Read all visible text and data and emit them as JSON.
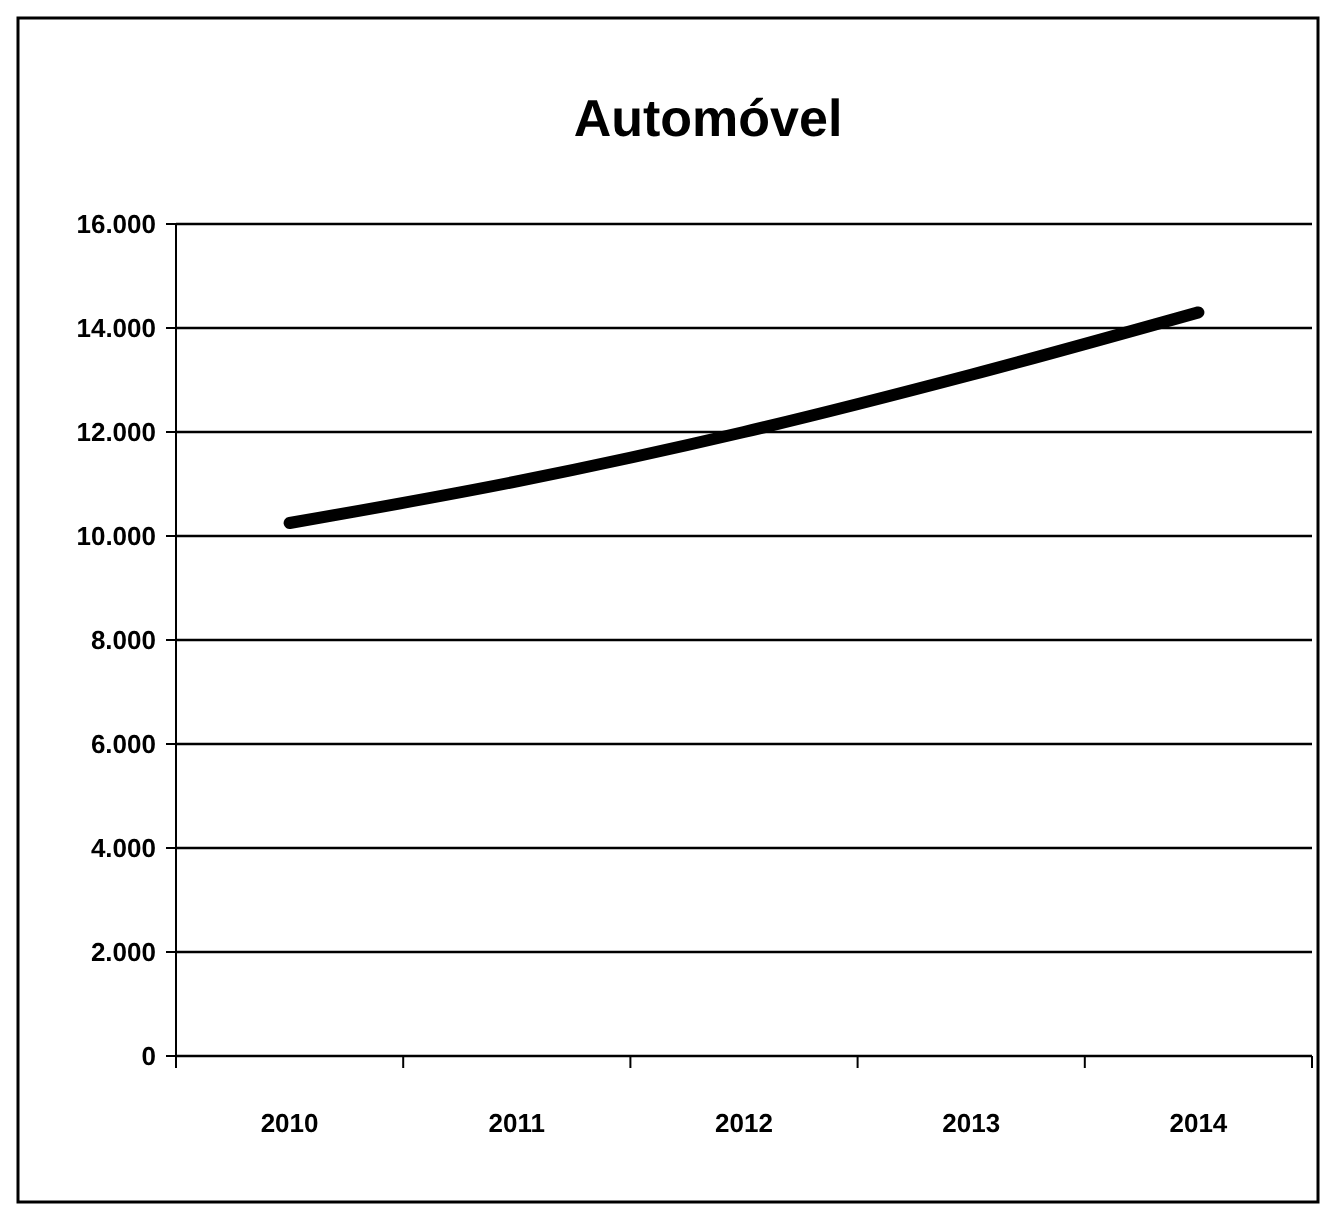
{
  "chart_data": {
    "type": "line",
    "title": "Automóvel",
    "categories": [
      "2010",
      "2011",
      "2012",
      "2013",
      "2014"
    ],
    "series": [
      {
        "color": "#000000",
        "values": [
          10250,
          11050,
          12000,
          13100,
          14300
        ]
      }
    ],
    "ylim": [
      0,
      16000
    ],
    "yticks": [
      {
        "value": 0,
        "label": "0"
      },
      {
        "value": 2000,
        "label": "2.000"
      },
      {
        "value": 4000,
        "label": "4.000"
      },
      {
        "value": 6000,
        "label": "6.000"
      },
      {
        "value": 8000,
        "label": "8.000"
      },
      {
        "value": 10000,
        "label": "10.000"
      },
      {
        "value": 12000,
        "label": "12.000"
      },
      {
        "value": 14000,
        "label": "14.000"
      },
      {
        "value": 16000,
        "label": "16.000"
      }
    ],
    "grid": "y",
    "marker": "none",
    "line_style": "solid"
  }
}
